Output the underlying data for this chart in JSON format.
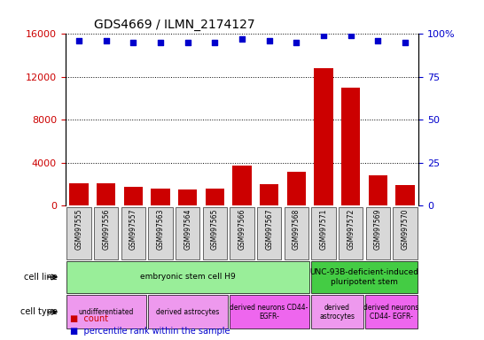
{
  "title": "GDS4669 / ILMN_2174127",
  "samples": [
    "GSM997555",
    "GSM997556",
    "GSM997557",
    "GSM997563",
    "GSM997564",
    "GSM997565",
    "GSM997566",
    "GSM997567",
    "GSM997568",
    "GSM997571",
    "GSM997572",
    "GSM997569",
    "GSM997570"
  ],
  "counts": [
    2100,
    2100,
    1800,
    1600,
    1500,
    1600,
    3700,
    2000,
    3200,
    12800,
    11000,
    2800,
    1900
  ],
  "percentile": [
    96,
    96,
    95,
    95,
    95,
    95,
    97,
    96,
    95,
    99,
    99,
    96,
    95
  ],
  "bar_color": "#cc0000",
  "dot_color": "#0000cc",
  "ylim_left": [
    0,
    16000
  ],
  "ylim_right": [
    0,
    100
  ],
  "yticks_left": [
    0,
    4000,
    8000,
    12000,
    16000
  ],
  "yticks_right": [
    0,
    25,
    50,
    75,
    100
  ],
  "cell_line_data": [
    {
      "label": "embryonic stem cell H9",
      "start": 0,
      "end": 9,
      "color": "#99ee99"
    },
    {
      "label": "UNC-93B-deficient-induced\npluripotent stem",
      "start": 9,
      "end": 13,
      "color": "#44cc44"
    }
  ],
  "cell_type_data": [
    {
      "label": "undifferentiated",
      "start": 0,
      "end": 3,
      "color": "#ee99ee"
    },
    {
      "label": "derived astrocytes",
      "start": 3,
      "end": 6,
      "color": "#ee99ee"
    },
    {
      "label": "derived neurons CD44-\nEGFR-",
      "start": 6,
      "end": 9,
      "color": "#ee66ee"
    },
    {
      "label": "derived\nastrocytes",
      "start": 9,
      "end": 11,
      "color": "#ee99ee"
    },
    {
      "label": "derived neurons\nCD44- EGFR-",
      "start": 11,
      "end": 13,
      "color": "#ee66ee"
    }
  ],
  "sample_bg_color": "#d8d8d8",
  "bg_color": "#ffffff",
  "tick_label_color_left": "#cc0000",
  "tick_label_color_right": "#0000cc",
  "left_labels": [
    "cell line",
    "cell type"
  ],
  "legend_items": [
    {
      "color": "#cc0000",
      "label": "count"
    },
    {
      "color": "#0000cc",
      "label": "percentile rank within the sample"
    }
  ]
}
